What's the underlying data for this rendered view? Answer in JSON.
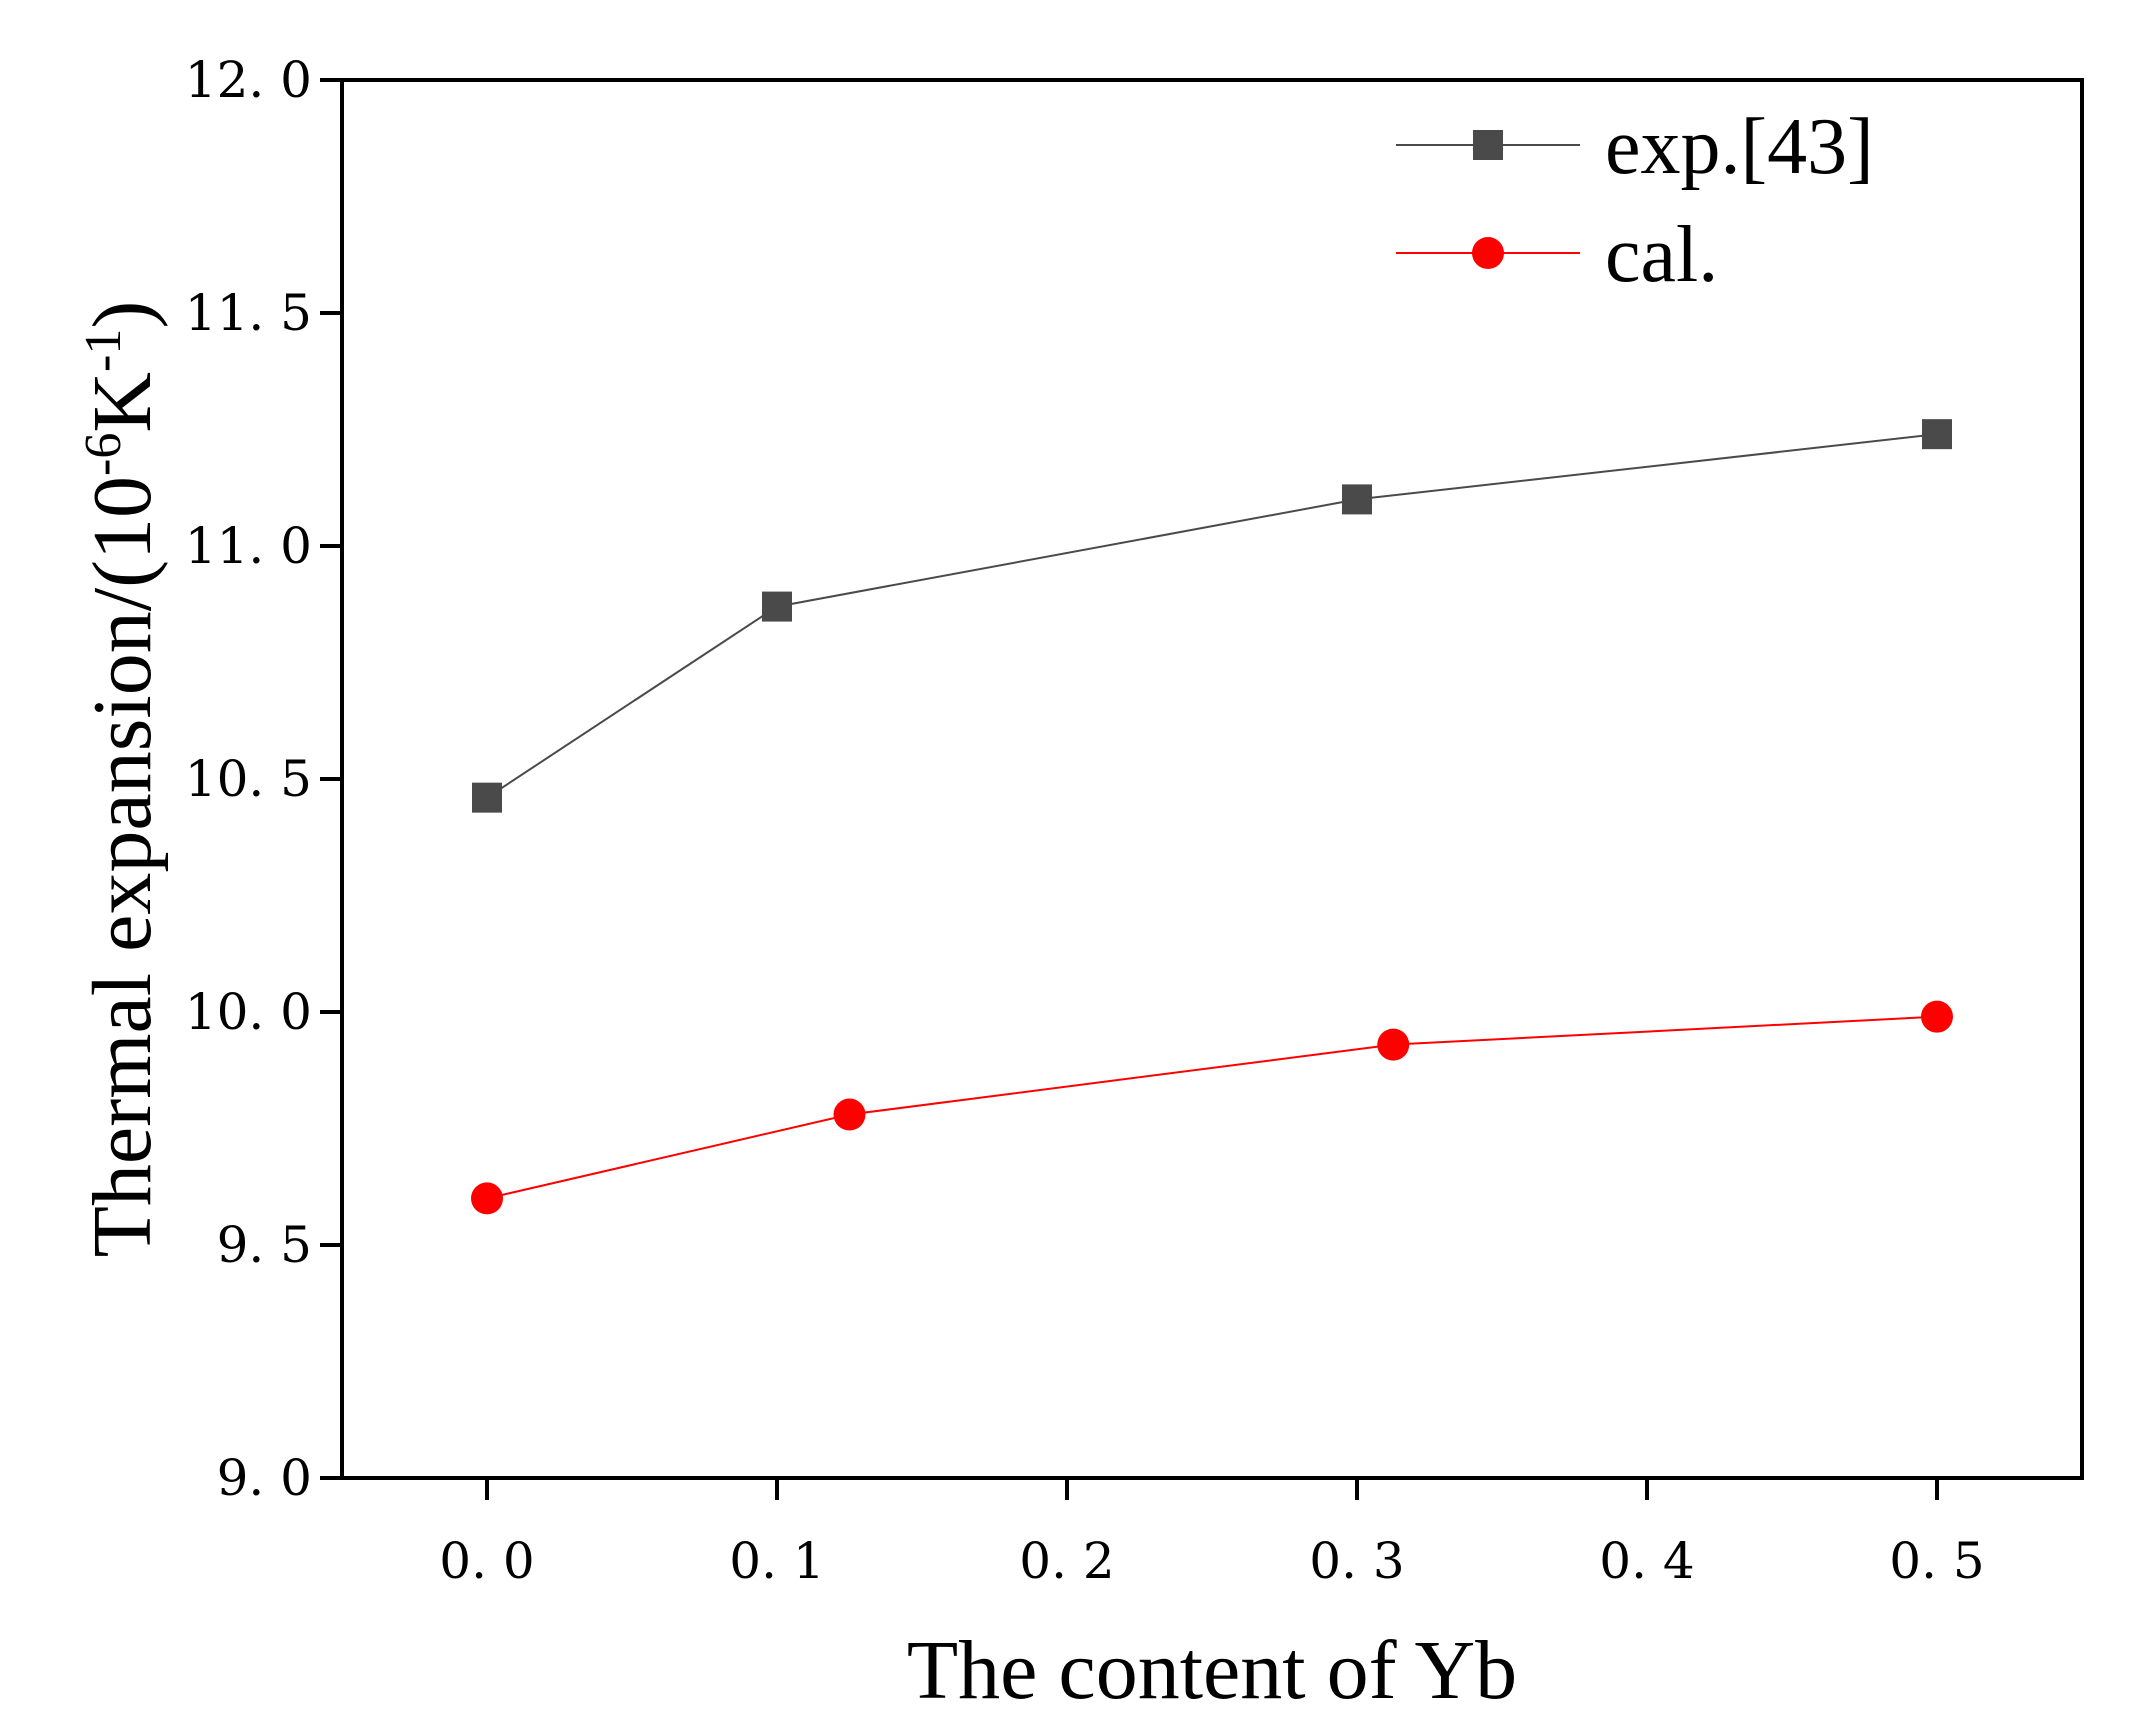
{
  "chart_data": {
    "type": "line",
    "title": "",
    "xlabel": "The content of Yb",
    "ylabel": "Thermal expansion/(10",
    "ylabel_sup1": "-6",
    "ylabel_mid": "K",
    "ylabel_sup2": "-1",
    "ylabel_end": ")",
    "xlim": [
      -0.05,
      0.55
    ],
    "ylim": [
      9.0,
      12.0
    ],
    "xticks": [
      0.0,
      0.1,
      0.2,
      0.3,
      0.4,
      0.5
    ],
    "xtick_labels": [
      "0. 0",
      "0. 1",
      "0. 2",
      "0. 3",
      "0. 4",
      "0. 5"
    ],
    "yticks": [
      9.0,
      9.5,
      10.0,
      10.5,
      11.0,
      11.5,
      12.0
    ],
    "ytick_labels": [
      "9. 0",
      "9. 5",
      "10. 0",
      "10. 5",
      "11. 0",
      "11. 5",
      "12. 0"
    ],
    "legend_position": "top-right",
    "series": [
      {
        "name": "exp.[43]",
        "marker": "square",
        "color": "#4a4a4a",
        "x": [
          0.0,
          0.1,
          0.3,
          0.5
        ],
        "y": [
          10.46,
          10.87,
          11.1,
          11.24
        ]
      },
      {
        "name": "cal.",
        "marker": "circle",
        "color": "#ff0000",
        "x": [
          0.0,
          0.125,
          0.3125,
          0.5
        ],
        "y": [
          9.6,
          9.78,
          9.93,
          9.99
        ]
      }
    ]
  }
}
